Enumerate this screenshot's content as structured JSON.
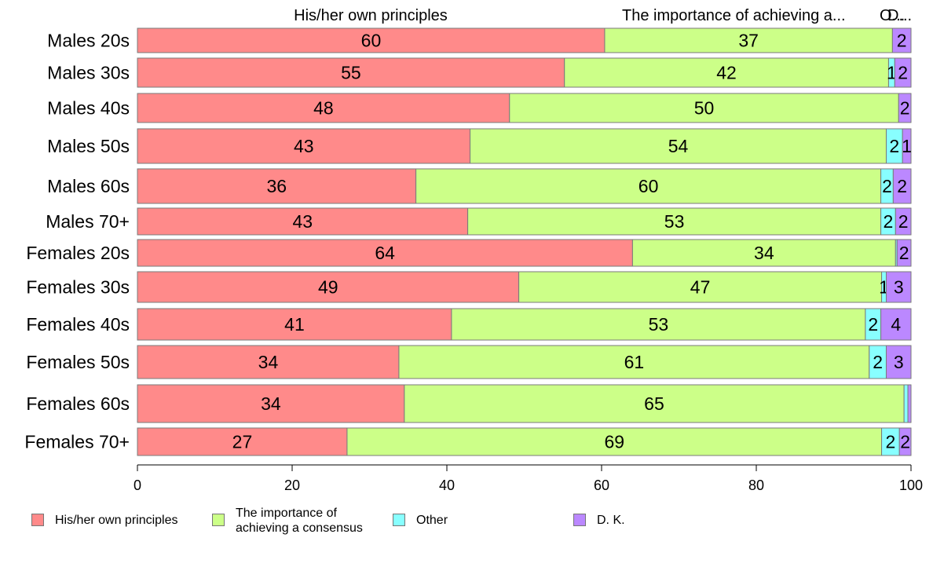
{
  "chart_data": {
    "type": "bar",
    "orientation": "horizontal",
    "stacked": true,
    "categories": [
      "Males 20s",
      "Males 30s",
      "Males 40s",
      "Males 50s",
      "Males 60s",
      "Males 70+",
      "Females 20s",
      "Females 30s",
      "Females 40s",
      "Females 50s",
      "Females 60s",
      "Females 70+"
    ],
    "series": [
      {
        "name": "His/her own principles",
        "color": "#FF8A8A",
        "values": [
          60.4,
          55.2,
          48.1,
          43.0,
          36.0,
          42.7,
          64.0,
          49.3,
          40.6,
          33.8,
          34.5,
          27.1
        ]
      },
      {
        "name": "The importance of achieving a consensus",
        "color": "#CCFF88",
        "values": [
          37.2,
          41.9,
          50.3,
          53.8,
          60.1,
          53.4,
          34.0,
          46.9,
          53.5,
          60.8,
          64.6,
          69.1
        ]
      },
      {
        "name": "Other",
        "color": "#88FFFF",
        "values": [
          0.0,
          0.8,
          0.0,
          2.1,
          1.6,
          1.9,
          0.2,
          0.6,
          2.0,
          2.2,
          0.5,
          2.3
        ]
      },
      {
        "name": "D. K.",
        "color": "#BB88FF",
        "values": [
          2.4,
          2.1,
          1.6,
          1.1,
          2.3,
          2.0,
          1.8,
          3.2,
          3.9,
          3.2,
          0.4,
          1.5
        ]
      }
    ],
    "data_labels": [
      [
        "60",
        "37",
        "",
        "2"
      ],
      [
        "55",
        "42",
        "1",
        "2"
      ],
      [
        "48",
        "50",
        "",
        "2"
      ],
      [
        "43",
        "54",
        "2",
        "1"
      ],
      [
        "36",
        "60",
        "2",
        "2"
      ],
      [
        "43",
        "53",
        "2",
        "2"
      ],
      [
        "64",
        "34",
        "",
        "2"
      ],
      [
        "49",
        "47",
        "1",
        "3"
      ],
      [
        "41",
        "53",
        "2",
        "4"
      ],
      [
        "34",
        "61",
        "2",
        "3"
      ],
      [
        "34",
        "65",
        "",
        ""
      ],
      [
        "27",
        "69",
        "2",
        "2"
      ]
    ],
    "top_labels": [
      "His/her own principles",
      "The importance of achieving a...",
      "O...",
      "D..."
    ],
    "xlim": [
      0,
      100
    ],
    "xticks": [
      0,
      20,
      40,
      60,
      80,
      100
    ],
    "legend": {
      "position": "bottom",
      "items": [
        {
          "lines": [
            "His/her own principles"
          ],
          "color": "#FF8A8A"
        },
        {
          "lines": [
            "The importance of",
            "achieving a consensus"
          ],
          "color": "#CCFF88"
        },
        {
          "lines": [
            "Other"
          ],
          "color": "#88FFFF"
        },
        {
          "lines": [
            "D. K."
          ],
          "color": "#BB88FF"
        }
      ]
    }
  }
}
